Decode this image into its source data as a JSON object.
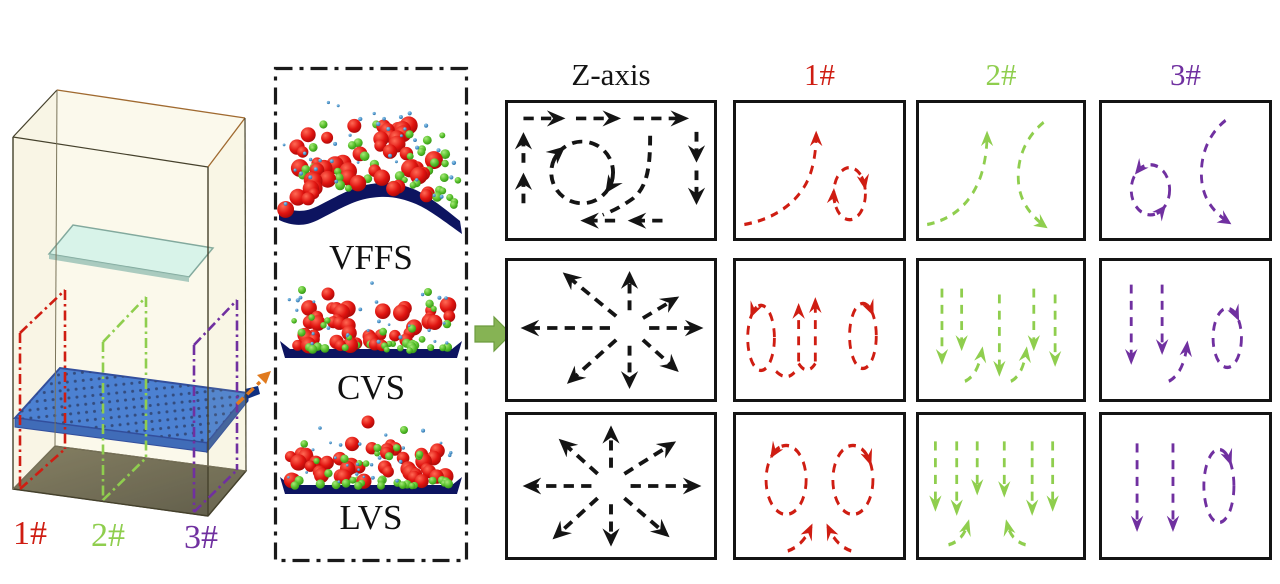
{
  "colors": {
    "black": "#141414",
    "red": "#cf1d12",
    "green": "#8fce4e",
    "purple": "#7030a0",
    "orange": "#e07a1e",
    "tray": "#0d1460",
    "plate_blue": "#2a6ace",
    "plate_edge": "#0c2f8f",
    "glass": "#cdf1e9",
    "floor_dark": "#4d4a31",
    "box_cream": "#f8f4dc",
    "box_edge": "#45412c",
    "flow_arrow_fill": "#86b354",
    "flow_arrow_edge": "#6d9c3f",
    "particle_red": "#e01410",
    "particle_green": "#55bf2a",
    "particle_blue": "#4a90c8"
  },
  "apparatus": {
    "section_labels": [
      {
        "text": "1#",
        "color": "red"
      },
      {
        "text": "2#",
        "color": "green"
      },
      {
        "text": "3#",
        "color": "purple"
      }
    ]
  },
  "sim_panel": {
    "items": [
      {
        "label": "VFFS",
        "surface": "wavy"
      },
      {
        "label": "CVS",
        "surface": "flat"
      },
      {
        "label": "LVS",
        "surface": "flat"
      }
    ]
  },
  "flow_grid": {
    "columns": [
      {
        "label": "Z-axis",
        "color": "black"
      },
      {
        "label": "1#",
        "color": "red"
      },
      {
        "label": "2#",
        "color": "green"
      },
      {
        "label": "3#",
        "color": "purple"
      }
    ],
    "rows": [
      {
        "patterns": [
          "loop-circulation",
          "rise-and-vortex",
          "rise-and-fall",
          "vortex-and-fall"
        ]
      },
      {
        "patterns": [
          "radial-burst-high",
          "edge-down-center-up",
          "multi-down-two-up",
          "down-up-vortex"
        ]
      },
      {
        "patterns": [
          "radial-burst-centered",
          "twin-vortex-center-up",
          "multi-down-six",
          "down-down-vortex"
        ]
      }
    ]
  }
}
